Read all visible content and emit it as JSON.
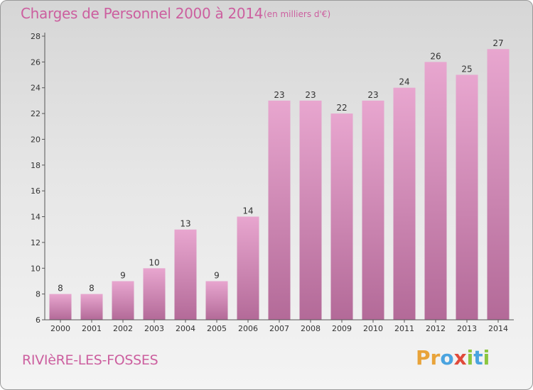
{
  "header": {
    "title": "Charges de Personnel 2000 à 2014",
    "subtitle": "(en milliers d'€)"
  },
  "footer": {
    "commune": "RIVIèRE-LES-FOSSES",
    "logo_letters": [
      "P",
      "r",
      "o",
      "x",
      "i",
      "t",
      "i"
    ],
    "logo_colors": [
      "#e8a33a",
      "#e8a33a",
      "#4aa3df",
      "#e04a3a",
      "#8cc63f",
      "#4aa3df",
      "#8cc63f"
    ]
  },
  "colors": {
    "bar_top": "#e8a6cf",
    "bar_bottom": "#b36a98",
    "text_accent": "#cc5f9f"
  },
  "chart_data": {
    "type": "bar",
    "title": "Charges de Personnel 2000 à 2014",
    "subtitle": "(en milliers d'€)",
    "categories": [
      "2000",
      "2001",
      "2002",
      "2003",
      "2004",
      "2005",
      "2006",
      "2007",
      "2008",
      "2009",
      "2010",
      "2011",
      "2012",
      "2013",
      "2014"
    ],
    "values": [
      8,
      8,
      9,
      10,
      13,
      9,
      14,
      23,
      23,
      22,
      23,
      24,
      26,
      25,
      27
    ],
    "data_labels": [
      "8",
      "8",
      "9",
      "10",
      "13",
      "9",
      "14",
      "23",
      "23",
      "22",
      "23",
      "24",
      "26",
      "25",
      "27"
    ],
    "ylim": [
      6,
      28
    ],
    "yticks": [
      6,
      8,
      10,
      12,
      14,
      16,
      18,
      20,
      22,
      24,
      26,
      28
    ],
    "ytick_labels": [
      "6",
      "8",
      "10",
      "12",
      "14",
      "16",
      "18",
      "20",
      "22",
      "24",
      "26",
      "28"
    ],
    "xlabel": "",
    "ylabel": "",
    "grid": false,
    "legend": "none"
  }
}
